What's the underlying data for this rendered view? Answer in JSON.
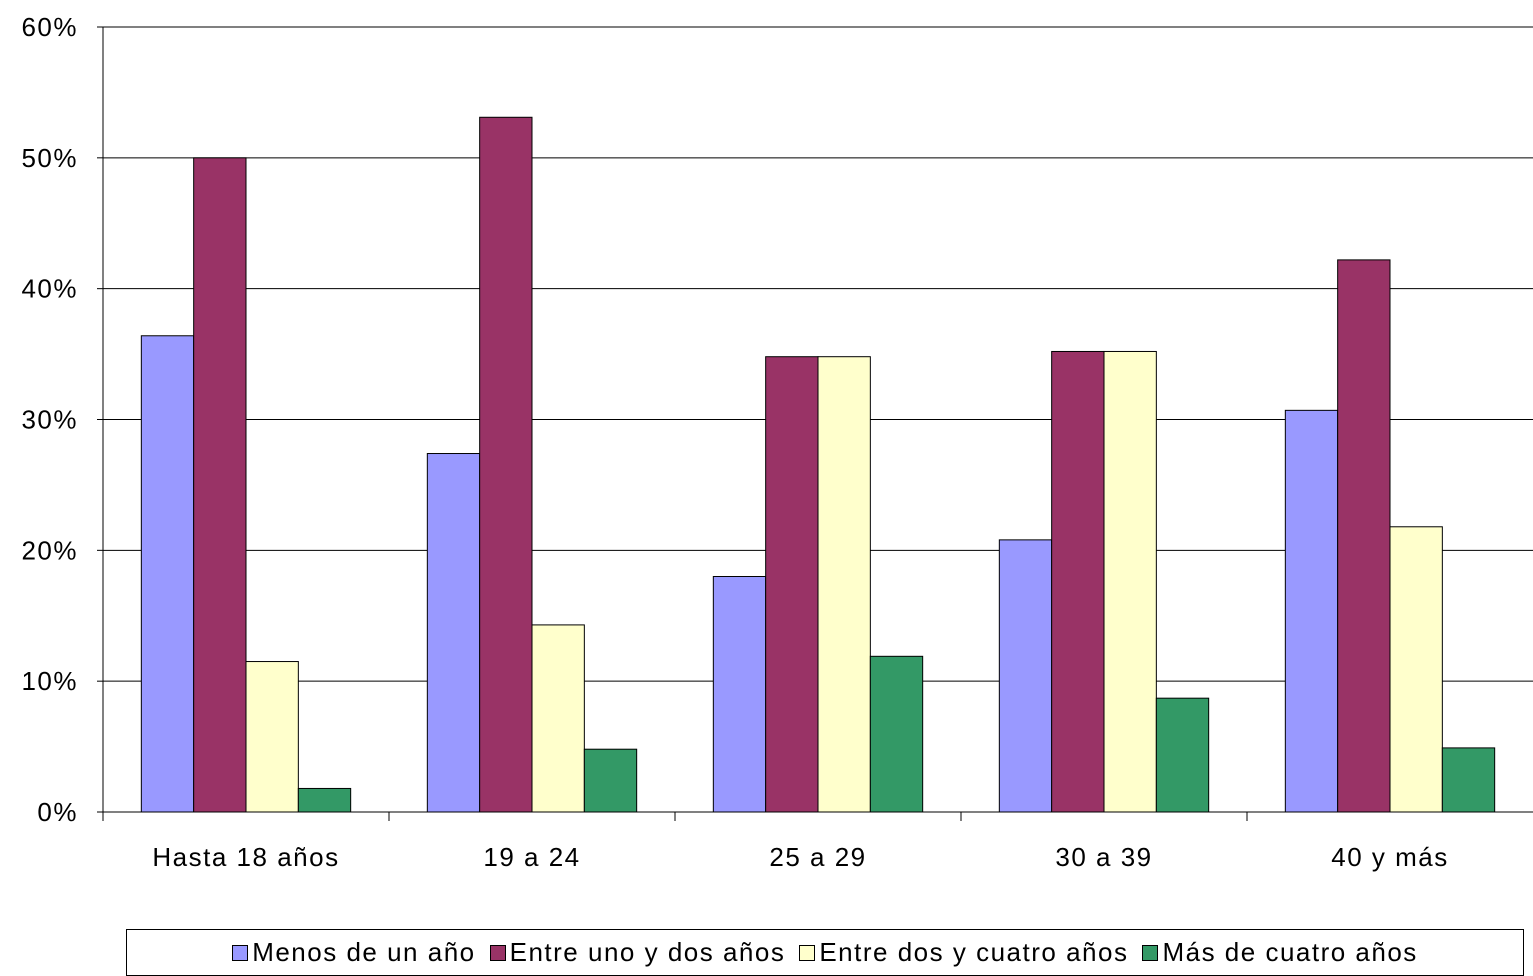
{
  "chart_data": {
    "type": "bar",
    "categories": [
      "Hasta 18 años",
      "19 a 24",
      "25 a 29",
      "30 a 39",
      "40 y más"
    ],
    "series": [
      {
        "name": "Menos de un año",
        "color": "#9999ff",
        "values": [
          36.4,
          27.4,
          18.0,
          20.8,
          30.7
        ]
      },
      {
        "name": "Entre uno y dos años",
        "color": "#993366",
        "values": [
          50.0,
          53.1,
          34.8,
          35.2,
          42.2
        ]
      },
      {
        "name": "Entre dos y cuatro años",
        "color": "#ffffcc",
        "values": [
          11.5,
          14.3,
          34.8,
          35.2,
          21.8
        ]
      },
      {
        "name": "Más de cuatro años",
        "color": "#339966",
        "values": [
          1.8,
          4.8,
          11.9,
          8.7,
          4.9
        ]
      }
    ],
    "ylim": [
      0,
      60
    ],
    "yticks": [
      "0%",
      "10%",
      "20%",
      "30%",
      "40%",
      "50%",
      "60%"
    ],
    "grid": true,
    "legend_position": "bottom"
  }
}
